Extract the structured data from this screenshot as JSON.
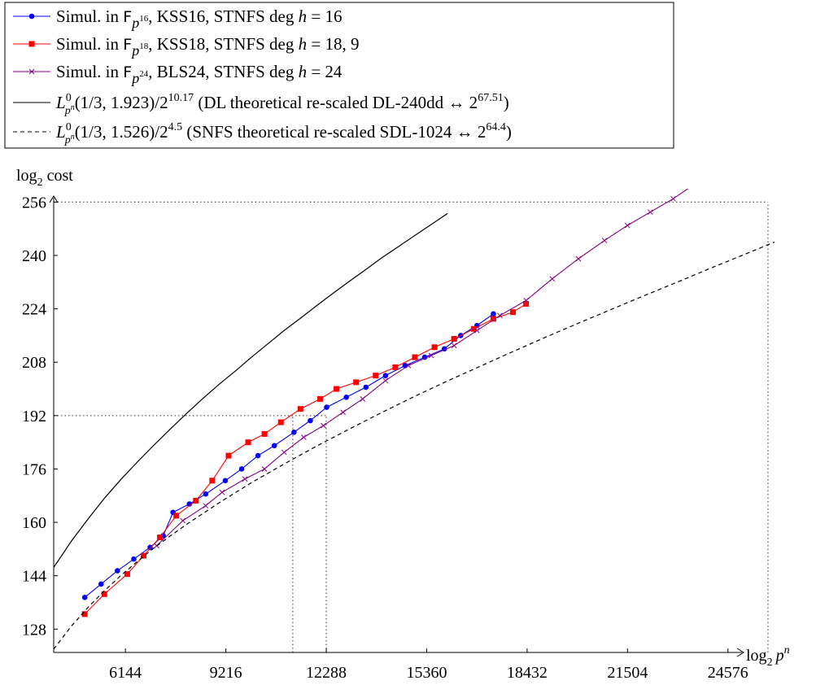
{
  "chart_data": {
    "type": "line",
    "xlabel_main": "log",
    "xlabel_sub": "2",
    "xlabel_var": "p",
    "xlabel_sup": "n",
    "ylabel_main": "log",
    "ylabel_sub": "2",
    "ylabel_rest": " cost",
    "xlim": [
      3950,
      26000
    ],
    "ylim": [
      121,
      260
    ],
    "xticks": [
      "6144",
      "9216",
      "12288",
      "15360",
      "18432",
      "21504",
      "24576"
    ],
    "yticks": [
      "128",
      "144",
      "160",
      "176",
      "192",
      "208",
      "224",
      "240",
      "256"
    ],
    "grid": false,
    "legend_position": "top-left",
    "series": [
      {
        "legend": "Simul. in F_{p^16}, KSS16, STNFS deg h = 16",
        "color": "#0000ff",
        "marker": "circle",
        "x": [
          4900,
          5400,
          5900,
          6400,
          6900,
          7300,
          7600,
          8100,
          8600,
          9200,
          9700,
          10200,
          10700,
          11300,
          11800,
          12300,
          12900,
          13500,
          14100,
          14700,
          15300,
          15900,
          16400,
          16900,
          17400
        ],
        "y": [
          137.5,
          141.5,
          145.5,
          149,
          152.5,
          156,
          163,
          165.5,
          168.5,
          172.5,
          176,
          180,
          183,
          187,
          190.5,
          194.5,
          197.5,
          200.5,
          204,
          207,
          209.5,
          212,
          216,
          219,
          222.5
        ]
      },
      {
        "legend": "Simul. in F_{p^18}, KSS18, STNFS deg h = 18, 9",
        "color": "#ff0000",
        "marker": "square",
        "x": [
          4900,
          5500,
          6200,
          6700,
          7200,
          7700,
          8300,
          8800,
          9300,
          9900,
          10400,
          10900,
          11500,
          12100,
          12600,
          13200,
          13800,
          14400,
          15000,
          15600,
          16200,
          16800,
          17400,
          18000,
          18400
        ],
        "y": [
          132.5,
          138.5,
          144.5,
          150,
          155.5,
          162,
          166.5,
          172.5,
          180,
          184,
          186.5,
          190,
          194,
          197,
          200,
          202,
          204,
          206.5,
          209.5,
          212.5,
          215,
          218,
          221,
          223,
          225.5
        ]
      },
      {
        "legend": "Simul. in F_{p^24}, BLS24, STNFS deg h = 24",
        "color": "#800080",
        "marker": "cross",
        "x": [
          7100,
          7900,
          8600,
          9100,
          9800,
          10400,
          11000,
          11600,
          12200,
          12800,
          13400,
          14100,
          14800,
          15500,
          16200,
          16900,
          17600,
          18400,
          19200,
          20000,
          20800,
          21500,
          22200,
          22900,
          23500
        ],
        "y": [
          153,
          160.5,
          165,
          169,
          173,
          176,
          181,
          185.5,
          189,
          193,
          197,
          202.5,
          207,
          210,
          213,
          217.5,
          222,
          226.5,
          233,
          239,
          244.5,
          249,
          253,
          257,
          261
        ]
      },
      {
        "legend": "L^0_{p^n}(1/3, 1.923)/2^{10.17} (DL theoretical re-scaled DL-240dd <-> 2^{67.51})",
        "color": "#000000",
        "style": "solid",
        "x": [
          3950,
          4500,
          5000,
          5500,
          6000,
          6500,
          7000,
          7500,
          8000,
          8500,
          9000,
          9500,
          10000,
          10500,
          11000,
          11500,
          12000,
          12500,
          13000,
          13500,
          14000,
          14500,
          15000,
          15500,
          16000
        ],
        "y": [
          146.5,
          154.5,
          161,
          167.2,
          172.8,
          178,
          183,
          187.8,
          192.5,
          197,
          201.3,
          205.3,
          209.5,
          213.5,
          217.5,
          221.2,
          225,
          228.7,
          232.3,
          235.8,
          239.4,
          242.7,
          246,
          249.3,
          252.6
        ]
      },
      {
        "legend": "L^0_{p^n}(1/3, 1.526)/2^{4.5} (SNFS theoretical re-scaled SDL-1024 <-> 2^{64.4})",
        "color": "#000000",
        "style": "dashed",
        "x": [
          3950,
          4500,
          5000,
          5500,
          6000,
          6500,
          7000,
          7500,
          8000,
          9000,
          10000,
          11000,
          12000,
          13000,
          14000,
          15000,
          16000,
          17000,
          18000,
          19000,
          20000,
          21000,
          22000,
          23000,
          24000,
          25000,
          26000
        ],
        "y": [
          122,
          129,
          134.5,
          139.5,
          144,
          148.2,
          152.2,
          155.8,
          159.3,
          165.8,
          171.9,
          177.5,
          182.9,
          188,
          193,
          197.8,
          202.4,
          206.8,
          211.2,
          215.5,
          219.7,
          223.8,
          227.9,
          231.9,
          236,
          240,
          244
        ]
      }
    ],
    "reference_lines": [
      {
        "from": [
          3950,
          256
        ],
        "to": [
          25800,
          256
        ]
      },
      {
        "from": [
          25800,
          121
        ],
        "to": [
          25800,
          256
        ]
      },
      {
        "from": [
          3950,
          192
        ],
        "to": [
          12288,
          192
        ]
      },
      {
        "from": [
          11264,
          121
        ],
        "to": [
          11264,
          192
        ]
      },
      {
        "from": [
          12288,
          121
        ],
        "to": [
          12288,
          192
        ]
      }
    ]
  },
  "legend": [
    {
      "pre": "Simul. in ",
      "field": "F",
      "p": "p",
      "exp": "16",
      "post": ", KSS16, STNFS deg ",
      "h": "h",
      "eq": " = 16"
    },
    {
      "pre": "Simul. in ",
      "field": "F",
      "p": "p",
      "exp": "18",
      "post": ", KSS18, STNFS deg ",
      "h": "h",
      "eq": " = 18, 9"
    },
    {
      "pre": "Simul. in ",
      "field": "F",
      "p": "p",
      "exp": "24",
      "post": ", BLS24, STNFS deg ",
      "h": "h",
      "eq": " = 24"
    },
    {
      "L": "L",
      "Lsup": "0",
      "Lsub_p": "p",
      "Lsub_n": "n",
      "args": "(1/3, 1.923)/2",
      "pow": "10.17",
      "desc": " (DL theoretical re-scaled DL-240dd ↔ 2",
      "pow2": "67.51",
      "close": ")"
    },
    {
      "L": "L",
      "Lsup": "0",
      "Lsub_p": "p",
      "Lsub_n": "n",
      "args": "(1/3, 1.526)/2",
      "pow": "4.5",
      "desc": " (SNFS theoretical re-scaled SDL-1024 ↔ 2",
      "pow2": "64.4",
      "close": ")"
    }
  ]
}
